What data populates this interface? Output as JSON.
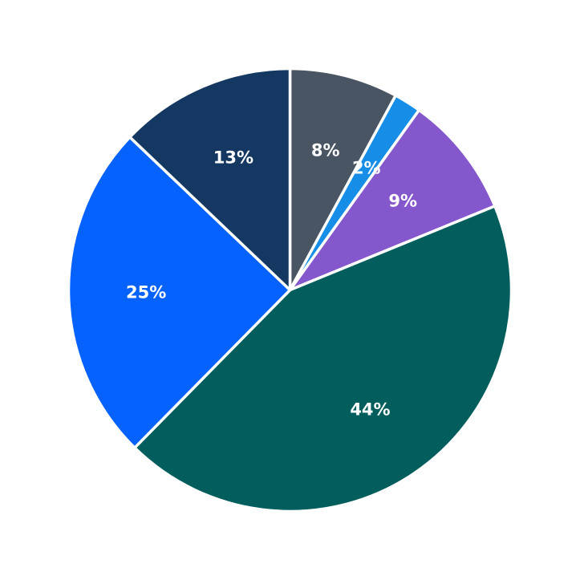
{
  "chart_data": {
    "type": "pie",
    "start": "top",
    "direction": "clockwise",
    "slices": [
      {
        "label": "8%",
        "value": 8,
        "color": "#4a5563"
      },
      {
        "label": "2%",
        "value": 2,
        "color": "#168ee8"
      },
      {
        "label": "9%",
        "value": 9,
        "color": "#8457cc"
      },
      {
        "label": "44%",
        "value": 44,
        "color": "#025d5d"
      },
      {
        "label": "25%",
        "value": 25,
        "color": "#0662fc"
      },
      {
        "label": "13%",
        "value": 13,
        "color": "#143862"
      }
    ]
  }
}
